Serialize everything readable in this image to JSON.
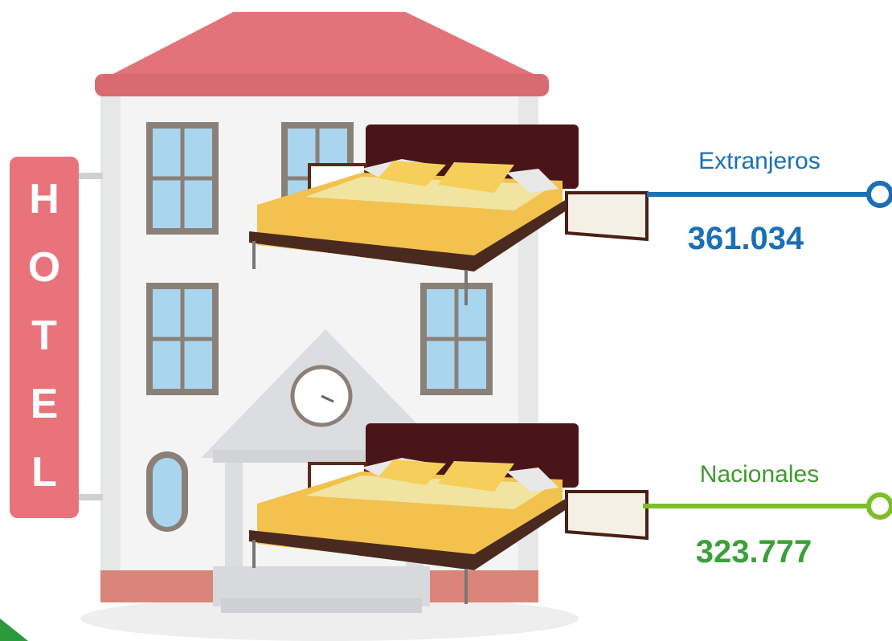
{
  "sign": [
    "H",
    "O",
    "T",
    "E",
    "L"
  ],
  "labels": [
    {
      "name": "Extranjeros",
      "value": "361.034"
    },
    {
      "name": "Nacionales",
      "value": "323.777"
    }
  ]
}
